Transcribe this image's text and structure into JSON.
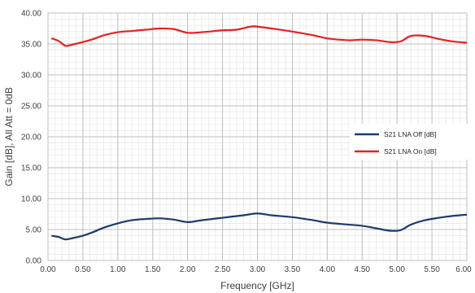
{
  "chart_data": {
    "type": "line",
    "xlabel": "Frequency [GHz]",
    "ylabel": "Gain [dB], All Att = 0dB",
    "xlim": [
      0,
      6
    ],
    "ylim": [
      0,
      40
    ],
    "x_ticks": [
      "0.00",
      "0.50",
      "1.00",
      "1.50",
      "2.00",
      "2.50",
      "3.00",
      "3.50",
      "4.00",
      "4.50",
      "5.00",
      "5.50",
      "6.00"
    ],
    "y_ticks": [
      "0.00",
      "5.00",
      "10.00",
      "15.00",
      "20.00",
      "25.00",
      "30.00",
      "35.00",
      "40.00"
    ],
    "grid": true,
    "minor_grid": true,
    "legend_position": "right",
    "series": [
      {
        "name": "S21 LNA Off [dB]",
        "color": "#1f3a6e",
        "x": [
          0.05,
          0.15,
          0.25,
          0.35,
          0.5,
          0.65,
          0.8,
          1.0,
          1.2,
          1.4,
          1.6,
          1.8,
          2.0,
          2.2,
          2.5,
          2.8,
          3.0,
          3.2,
          3.5,
          3.8,
          4.0,
          4.3,
          4.5,
          4.7,
          4.9,
          5.05,
          5.2,
          5.4,
          5.6,
          5.8,
          6.0
        ],
        "y": [
          4.0,
          3.8,
          3.4,
          3.6,
          4.0,
          4.6,
          5.3,
          6.0,
          6.5,
          6.7,
          6.8,
          6.6,
          6.2,
          6.5,
          6.9,
          7.3,
          7.6,
          7.3,
          7.0,
          6.5,
          6.1,
          5.8,
          5.6,
          5.2,
          4.8,
          4.9,
          5.8,
          6.5,
          6.9,
          7.2,
          7.4
        ]
      },
      {
        "name": "S21 LNA On [dB]",
        "color": "#e82020",
        "x": [
          0.05,
          0.15,
          0.25,
          0.35,
          0.5,
          0.65,
          0.8,
          1.0,
          1.2,
          1.4,
          1.6,
          1.8,
          2.0,
          2.2,
          2.5,
          2.7,
          2.9,
          3.0,
          3.2,
          3.5,
          3.8,
          4.0,
          4.3,
          4.5,
          4.7,
          4.9,
          5.05,
          5.2,
          5.4,
          5.6,
          5.8,
          6.0
        ],
        "y": [
          35.9,
          35.5,
          34.7,
          34.9,
          35.3,
          35.8,
          36.4,
          36.9,
          37.1,
          37.3,
          37.5,
          37.4,
          36.8,
          36.9,
          37.2,
          37.3,
          37.8,
          37.8,
          37.5,
          37.0,
          36.4,
          35.9,
          35.6,
          35.7,
          35.6,
          35.3,
          35.4,
          36.3,
          36.3,
          35.8,
          35.4,
          35.2
        ]
      }
    ]
  }
}
